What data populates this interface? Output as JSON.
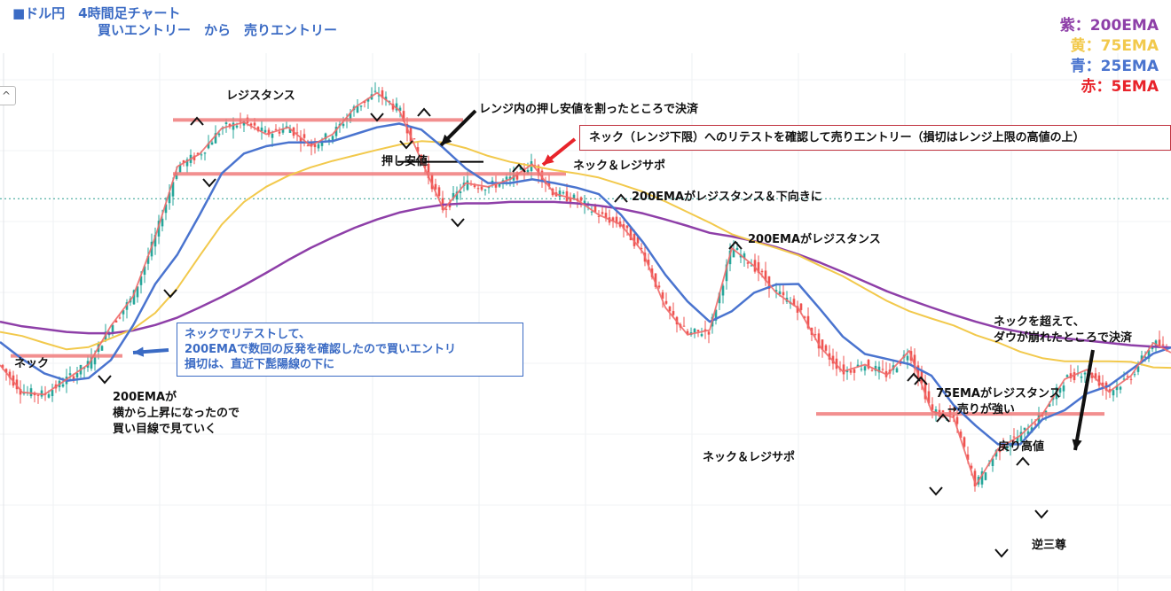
{
  "header": {
    "title_line1": "■ドル円　4時間足チャート",
    "title_line2": "買いエントリー　から　売りエントリー",
    "collapse_glyph": "^"
  },
  "legend": [
    {
      "label": "紫：200EMA",
      "color": "#8e3fa8"
    },
    {
      "label": "黄：75EMA",
      "color": "#f2c94c"
    },
    {
      "label": "青：25EMA",
      "color": "#4a74cf"
    },
    {
      "label": "赤：5EMA",
      "color": "#e8232a"
    }
  ],
  "annotations": {
    "resistance": "レジスタンス",
    "range_exit": "レンジ内の押し安値を割ったところで決済",
    "oshi_yasune": "押し安値",
    "neck_support_1": "ネック＆レジサポ",
    "ema200_resist_down": "200EMAがレジスタンス＆下向きに",
    "ema200_resist": "200EMAがレジスタンス",
    "neck": "ネック",
    "ema200_rising_1": "200EMAが",
    "ema200_rising_2": "横から上昇になったので",
    "ema200_rising_3": "買い目線で見ていく",
    "break_exit_1": "ネックを超えて、",
    "break_exit_2": "ダウが崩れたところで決済",
    "ema75_resist_1": "75EMAがレジスタンス",
    "ema75_resist_2": "→売りが強い",
    "modori_takane": "戻り高値",
    "neck_support_2": "ネック＆レジサポ",
    "inverse_hs": "逆三尊"
  },
  "callouts": {
    "buy_entry_1": "ネックでリテストして、",
    "buy_entry_2": "200EMAで数回の反発を確認したので買いエントリ",
    "buy_entry_3": "損切は、直近下髭陽線の下に",
    "sell_entry": "ネック（レンジ下限）へのリテストを確認して売りエントリー（損切はレンジ上限の高値の上）"
  },
  "chart_data": {
    "type": "line",
    "title": "■ドル円　4時間足チャート",
    "subtitle": "買いエントリー　から　売りエントリー",
    "xlabel": "",
    "ylabel": "",
    "axes_labels": "none",
    "ylim": [
      0,
      100
    ],
    "x": [
      0,
      25,
      50,
      75,
      100,
      125,
      150,
      175,
      200,
      225,
      250,
      275,
      300,
      325,
      350,
      375,
      400,
      425,
      450,
      475,
      500,
      525,
      550,
      575,
      600,
      625,
      650,
      675,
      700,
      725,
      750,
      775,
      800,
      825,
      850,
      875,
      900,
      925,
      950,
      975,
      1000,
      1025,
      1050,
      1075,
      1100,
      1125,
      1150,
      1175,
      1200,
      1225,
      1250,
      1275,
      1300,
      1320
    ],
    "series": [
      {
        "name": "紫：200EMA",
        "color": "#8e3fa8",
        "width": 2.5,
        "values": [
          49.4,
          48.4,
          47.8,
          47.2,
          46.9,
          46.9,
          47.5,
          48.7,
          50.3,
          52.5,
          54.8,
          57.3,
          60.0,
          62.8,
          65.4,
          67.7,
          69.8,
          71.6,
          73.1,
          74.1,
          74.8,
          75.1,
          75.1,
          75.4,
          75.4,
          75.4,
          75.1,
          74.6,
          73.9,
          72.9,
          71.6,
          70.2,
          68.7,
          67.9,
          66.9,
          65.6,
          64.0,
          62.2,
          60.2,
          58.1,
          56.0,
          54.2,
          52.5,
          50.9,
          49.4,
          48.1,
          47.2,
          46.3,
          45.8,
          45.3,
          44.8,
          44.3,
          44.0,
          43.8
        ]
      },
      {
        "name": "黄：75EMA",
        "color": "#f2c94c",
        "width": 2,
        "values": [
          47.2,
          46.3,
          44.8,
          43.4,
          43.9,
          45.8,
          47.8,
          51.3,
          56.7,
          63.7,
          70.5,
          75.4,
          78.7,
          81.1,
          82.9,
          84.3,
          85.5,
          86.7,
          87.8,
          88.6,
          88.3,
          87.1,
          85.4,
          84.1,
          83.2,
          82.3,
          81.6,
          80.7,
          79.2,
          77.6,
          75.5,
          73.2,
          70.9,
          68.4,
          66.8,
          65.4,
          63.8,
          61.5,
          59.3,
          56.6,
          53.9,
          51.7,
          50.1,
          48.6,
          46.5,
          44.9,
          42.9,
          41.5,
          40.8,
          40.8,
          40.8,
          40.7,
          39.5,
          39.4
        ]
      },
      {
        "name": "青：25EMA",
        "color": "#4a74cf",
        "width": 2.5,
        "values": [
          45.0,
          41.3,
          38.2,
          36.6,
          37.2,
          41.1,
          48.6,
          57.6,
          64.0,
          72.6,
          81.6,
          85.9,
          87.5,
          88.3,
          88.3,
          88.6,
          90.1,
          91.6,
          92.4,
          91.1,
          87.1,
          82.7,
          79.5,
          79.5,
          80.3,
          79.5,
          78.5,
          77.1,
          72.6,
          66.6,
          59.6,
          53.8,
          49.4,
          51.7,
          55.7,
          57.5,
          57.6,
          52.0,
          46.2,
          42.4,
          41.3,
          40.2,
          37.7,
          31.3,
          26.8,
          22.8,
          22.8,
          28.2,
          30.2,
          33.8,
          35.5,
          39.0,
          42.5,
          43.8
        ]
      },
      {
        "name": "赤：5EMA",
        "color": "#f06a6a",
        "width": 1.8,
        "values": [
          40.0,
          34.1,
          33.6,
          36.9,
          40.2,
          48.5,
          54.9,
          67.8,
          83.1,
          85.8,
          91.4,
          92.7,
          90.1,
          91.6,
          87.6,
          90.1,
          95.9,
          99.1,
          95.3,
          84.4,
          73.7,
          79.5,
          78.7,
          80.3,
          83.6,
          77.2,
          75.9,
          72.6,
          70.5,
          64.4,
          52.5,
          46.6,
          47.6,
          65.4,
          61.5,
          55.7,
          52.3,
          43.8,
          38.6,
          40.1,
          37.9,
          43.1,
          30.0,
          28.6,
          13.9,
          21.8,
          24.7,
          29.3,
          36.9,
          39.0,
          34.2,
          37.7,
          44.8,
          42.7
        ]
      }
    ],
    "horizontal_levels": [
      {
        "y": 93.2,
        "x_start": 195,
        "x_end": 522,
        "color": "#f07b7b"
      },
      {
        "y": 81.5,
        "x_start": 195,
        "x_end": 638,
        "color": "#f07b7b"
      },
      {
        "y": 42.0,
        "x_start": 12,
        "x_end": 138,
        "color": "#f07b7b"
      },
      {
        "y": 29.4,
        "x_start": 920,
        "x_end": 1245,
        "color": "#f07b7b"
      },
      {
        "y": 84.1,
        "x_start": 448,
        "x_end": 545,
        "color": "#000000"
      }
    ],
    "reference_line": {
      "y": 76.1,
      "color": "#2a9d8f",
      "style": "dotted"
    },
    "grid": "faint vertical and horizontal",
    "legend_position": "top-right",
    "has_candlesticks": true
  }
}
